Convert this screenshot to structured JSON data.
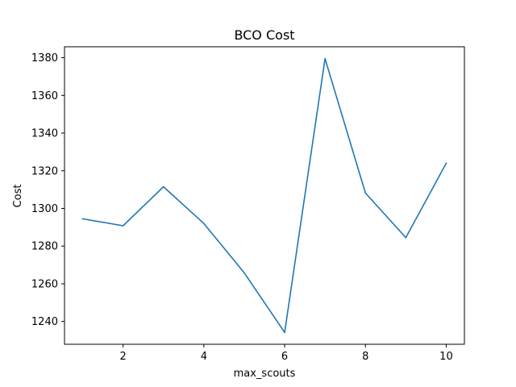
{
  "chart_data": {
    "type": "line",
    "title": "BCO Cost",
    "xlabel": "max_scouts",
    "ylabel": "Cost",
    "x": [
      1,
      2,
      3,
      4,
      5,
      6,
      7,
      8,
      9,
      10
    ],
    "series": [
      {
        "values": [
          1294.5,
          1290.8,
          1311.5,
          1292.0,
          1265.8,
          1234.2,
          1379.5,
          1308.2,
          1284.5,
          1324.0
        ]
      }
    ],
    "xlim": [
      0.55,
      10.45
    ],
    "ylim": [
      1227.9,
      1385.8
    ],
    "xticks": [
      2,
      4,
      6,
      8,
      10
    ],
    "yticks": [
      1240,
      1260,
      1280,
      1300,
      1320,
      1340,
      1360,
      1380
    ],
    "grid": false,
    "line_color": "#1f77b4"
  }
}
